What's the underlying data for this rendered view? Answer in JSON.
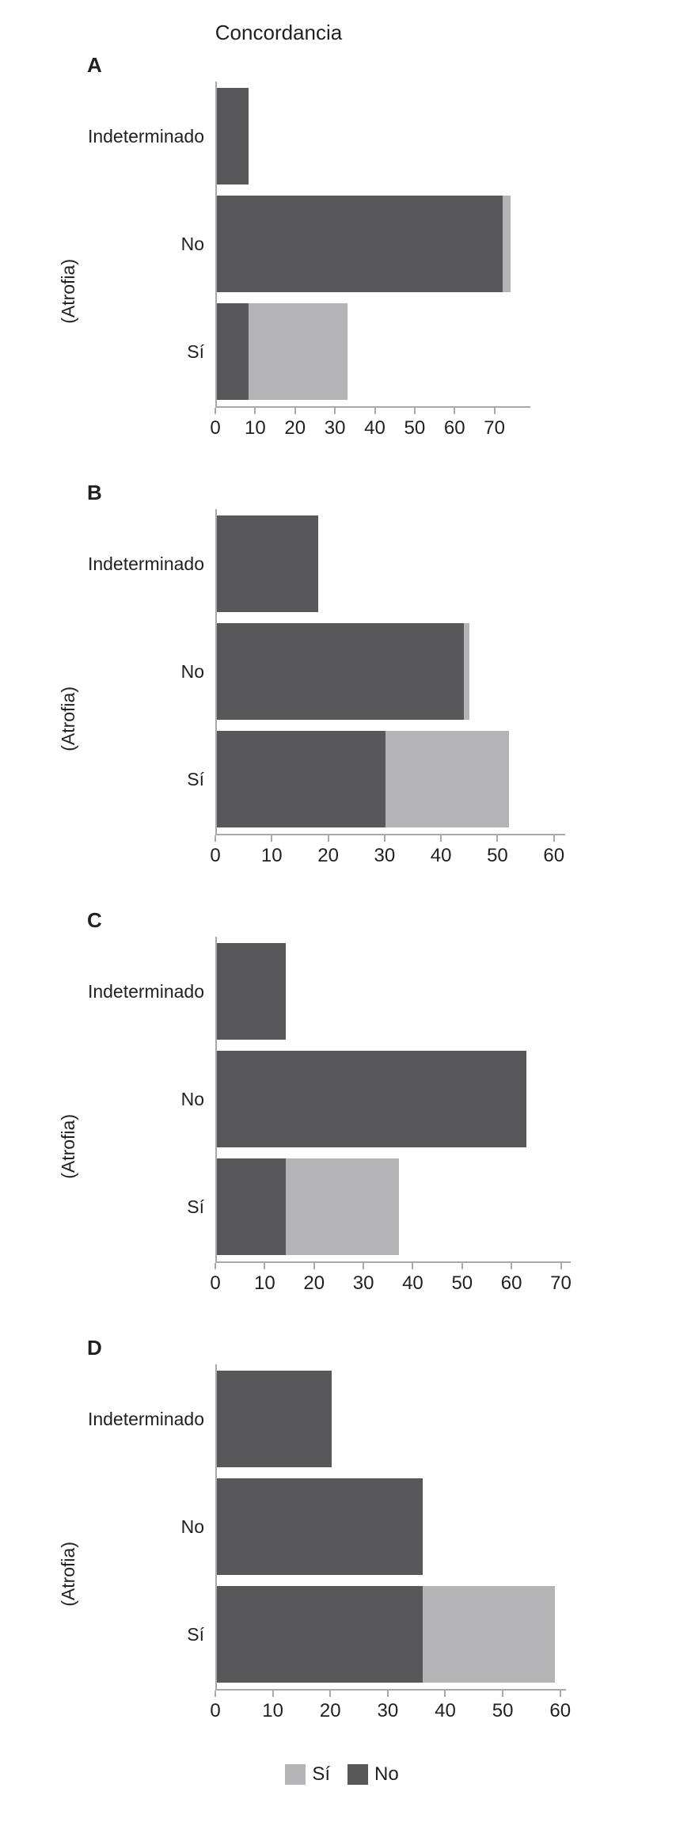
{
  "title": "Concordancia",
  "colors": {
    "si": "#b4b4b6",
    "no": "#58585a",
    "axis": "#a7a9ac",
    "text": "#231f20"
  },
  "legend": {
    "items": [
      {
        "label": "Sí",
        "color": "#b4b4b6"
      },
      {
        "label": "No",
        "color": "#58585a"
      }
    ]
  },
  "chart_data": [
    {
      "type": "bar",
      "panel": "A",
      "orientation": "horizontal",
      "stacked": true,
      "title": "Concordancia",
      "ylabel": "(Atrofia)",
      "categories": [
        "Indeterminado",
        "No",
        "Sí"
      ],
      "series": [
        {
          "name": "No",
          "color": "#58585a",
          "values": [
            8,
            72,
            8
          ]
        },
        {
          "name": "Sí",
          "color": "#b4b4b6",
          "values": [
            0,
            2,
            25
          ]
        }
      ],
      "xlim": [
        0,
        79
      ],
      "xticks": [
        0,
        10,
        20,
        30,
        40,
        50,
        60,
        70
      ],
      "grid": false,
      "legend_position": "bottom"
    },
    {
      "type": "bar",
      "panel": "B",
      "orientation": "horizontal",
      "stacked": true,
      "ylabel": "(Atrofia)",
      "categories": [
        "Indeterminado",
        "No",
        "Sí"
      ],
      "series": [
        {
          "name": "No",
          "color": "#58585a",
          "values": [
            18,
            44,
            30
          ]
        },
        {
          "name": "Sí",
          "color": "#b4b4b6",
          "values": [
            0,
            1,
            22
          ]
        }
      ],
      "xlim": [
        0,
        62
      ],
      "xticks": [
        0,
        10,
        20,
        30,
        40,
        50,
        60
      ],
      "grid": false,
      "legend_position": "bottom"
    },
    {
      "type": "bar",
      "panel": "C",
      "orientation": "horizontal",
      "stacked": true,
      "ylabel": "(Atrofia)",
      "categories": [
        "Indeterminado",
        "No",
        "Sí"
      ],
      "series": [
        {
          "name": "No",
          "color": "#58585a",
          "values": [
            14,
            63,
            14
          ]
        },
        {
          "name": "Sí",
          "color": "#b4b4b6",
          "values": [
            0,
            0,
            23
          ]
        }
      ],
      "xlim": [
        0,
        72
      ],
      "xticks": [
        0,
        10,
        20,
        30,
        40,
        50,
        60,
        70
      ],
      "grid": false,
      "legend_position": "bottom"
    },
    {
      "type": "bar",
      "panel": "D",
      "orientation": "horizontal",
      "stacked": true,
      "ylabel": "(Atrofia)",
      "categories": [
        "Indeterminado",
        "No",
        "Sí"
      ],
      "series": [
        {
          "name": "No",
          "color": "#58585a",
          "values": [
            20,
            36,
            36
          ]
        },
        {
          "name": "Sí",
          "color": "#b4b4b6",
          "values": [
            0,
            0,
            23
          ]
        }
      ],
      "xlim": [
        0,
        61
      ],
      "xticks": [
        0,
        10,
        20,
        30,
        40,
        50,
        60
      ],
      "grid": false,
      "legend_position": "bottom"
    }
  ]
}
